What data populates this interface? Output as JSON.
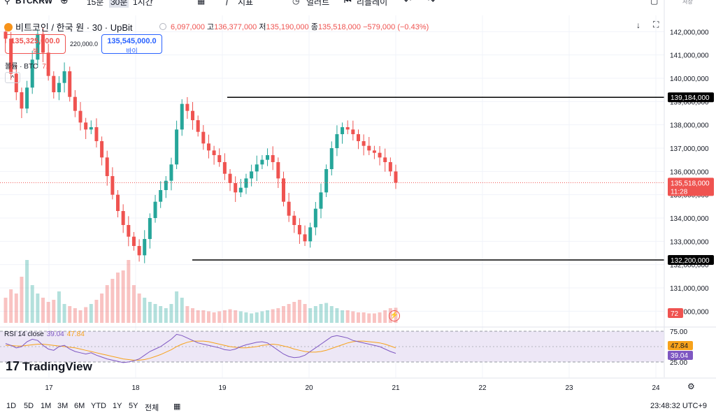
{
  "toolbar": {
    "symbol": "BTCKRW",
    "interval_15m": "15분",
    "interval_30m": "30분",
    "interval_1h": "1시간",
    "indicators_label": "지표",
    "alert_label": "얼러트",
    "replay_label": "리플레이",
    "trade_label": "저장"
  },
  "header": {
    "title": "비트코인 / 한국 원 · 30 · UpBit",
    "open": "6,097,000",
    "high_label": "고",
    "high": "136,377,000",
    "low_label": "저",
    "low": "135,190,000",
    "close_label": "종",
    "close": "135,518,000",
    "change": "−579,000 (−0.43%)"
  },
  "trade": {
    "sell_price": "135,325,000.0",
    "sell_label": "셀",
    "spread": "220,000.0",
    "buy_price": "135,545,000.0",
    "buy_label": "바이"
  },
  "volume": {
    "label": "볼륨 · BTC",
    "value": "72",
    "collapse": "^"
  },
  "rsi": {
    "label": "RSI 14 close",
    "value": "39.04",
    "ma": "47.84"
  },
  "logo": "TradingView",
  "x_axis_labels": [
    "17",
    "18",
    "19",
    "20",
    "21",
    "22",
    "23",
    "24"
  ],
  "y_axis_labels": [
    "142,000,000",
    "141,000,000",
    "140,000,000",
    "139,000,000",
    "138,000,000",
    "137,000,000",
    "136,000,000",
    "135,000,000",
    "134,000,000",
    "133,000,000",
    "132,000,000",
    "131,000,000",
    "130,000,000"
  ],
  "price_tags": {
    "resistance": "139,184,000",
    "support": "132,200,000",
    "last": "135,518,000",
    "countdown": "11:28",
    "volume": "72",
    "rsi_ma": "47.84",
    "rsi_val": "39.04"
  },
  "rsi_axis": [
    "75.00",
    "25.00"
  ],
  "bottom_bar": {
    "ranges": [
      "1D",
      "5D",
      "1M",
      "3M",
      "6M",
      "YTD",
      "1Y",
      "5Y",
      "전체"
    ],
    "time": "23:48:32 UTC+9"
  },
  "colors": {
    "up": "#26a69a",
    "down": "#ef5350",
    "rsi": "#7e57c2",
    "rsi_ma": "#f7a21b",
    "rsi_band": "#ede7f6"
  },
  "chart_data": {
    "type": "candlestick",
    "y_range": [
      129500000,
      142700000
    ],
    "levels": {
      "resistance": 139184000,
      "support": 132200000,
      "last": 135518000
    },
    "series": [
      {
        "name": "BTCKRW close",
        "values": [
          141700000,
          140200000,
          139400000,
          138700000,
          139600000,
          140800000,
          141900000,
          141100000,
          140100000,
          139400000,
          139800000,
          140300000,
          139200000,
          138600000,
          138100000,
          137800000,
          137900000,
          137300000,
          136600000,
          135800000,
          135000000,
          134300000,
          133700000,
          133200000,
          132800000,
          132400000,
          133100000,
          134000000,
          134700000,
          135200000,
          135600000,
          136300000,
          137800000,
          138900000,
          138600000,
          138200000,
          137700000,
          137200000,
          136900000,
          136700000,
          136400000,
          135900000,
          135500000,
          135100000,
          135300000,
          135700000,
          136000000,
          136300000,
          136500000,
          136700000,
          136400000,
          135700000,
          134700000,
          134100000,
          133700000,
          133300000,
          133000000,
          133600000,
          134400000,
          135100000,
          136100000,
          137000000,
          137600000,
          137900000,
          137800000,
          137600000,
          137300000,
          137100000,
          136900000,
          136800000,
          136600000,
          136400000,
          136000000,
          135518000
        ]
      }
    ],
    "volume": [
      120,
      160,
      140,
      220,
      300,
      180,
      140,
      120,
      100,
      110,
      150,
      90,
      80,
      70,
      60,
      75,
      90,
      110,
      140,
      180,
      210,
      240,
      250,
      300,
      180,
      140,
      120,
      100,
      90,
      80,
      70,
      90,
      150,
      120,
      80,
      70,
      60,
      60,
      55,
      50,
      55,
      60,
      65,
      60,
      55,
      50,
      45,
      50,
      55,
      60,
      65,
      70,
      80,
      90,
      100,
      110,
      90,
      70,
      80,
      90,
      95,
      80,
      70,
      60,
      60,
      55,
      50,
      50,
      45,
      45,
      50,
      60,
      70,
      72
    ],
    "rsi": [
      55,
      52,
      48,
      50,
      58,
      62,
      60,
      52,
      46,
      44,
      50,
      52,
      46,
      42,
      40,
      38,
      40,
      36,
      33,
      30,
      28,
      26,
      24,
      25,
      27,
      30,
      36,
      42,
      46,
      50,
      56,
      62,
      70,
      68,
      64,
      60,
      56,
      54,
      52,
      50,
      48,
      45,
      44,
      46,
      50,
      53,
      55,
      57,
      58,
      56,
      50,
      44,
      38,
      34,
      32,
      33,
      36,
      42,
      48,
      54,
      60,
      66,
      68,
      66,
      64,
      60,
      58,
      56,
      54,
      52,
      50,
      46,
      42,
      39.04
    ],
    "rsi_ma": [
      52,
      52,
      51,
      51,
      52,
      53,
      54,
      54,
      53,
      52,
      51,
      50,
      49,
      48,
      46,
      44,
      42,
      40,
      38,
      36,
      34,
      32,
      30,
      29,
      28,
      28,
      29,
      31,
      34,
      37,
      41,
      45,
      50,
      54,
      57,
      59,
      59,
      59,
      58,
      56,
      54,
      52,
      50,
      49,
      48,
      48,
      49,
      50,
      52,
      53,
      54,
      53,
      51,
      49,
      46,
      44,
      42,
      41,
      41,
      42,
      44,
      47,
      50,
      53,
      56,
      58,
      59,
      59,
      58,
      57,
      56,
      54,
      51,
      47.84
    ]
  }
}
